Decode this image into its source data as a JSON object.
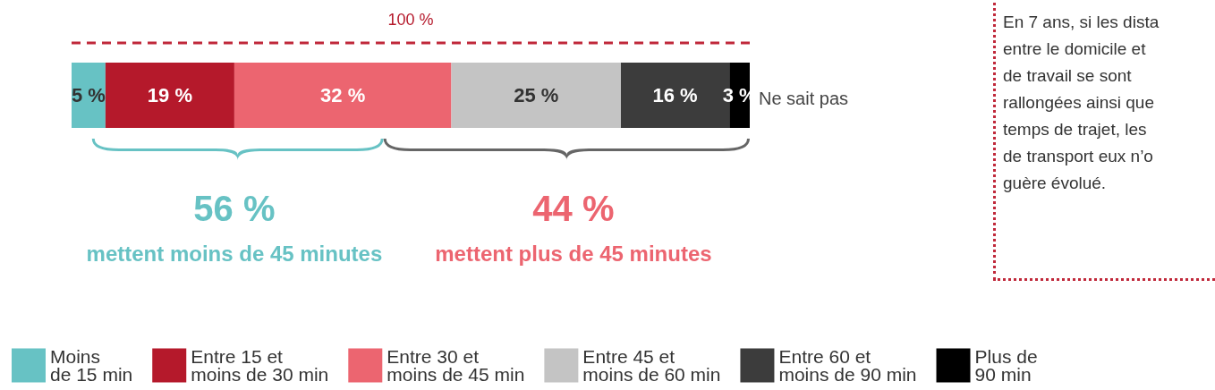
{
  "chart_data": {
    "type": "bar",
    "orientation": "horizontal",
    "stacked": true,
    "categories": [
      null
    ],
    "xlim": [
      0,
      100
    ],
    "legend": "bottom",
    "series": [
      {
        "name": "Moins\nde 15 min",
        "color": "#67c2c4",
        "values": [
          5
        ],
        "value_labels": [
          "5 %"
        ]
      },
      {
        "name": "Entre 15 et\nmoins de 30 min",
        "color": "#b5192b",
        "values": [
          19
        ],
        "value_labels": [
          "19 %"
        ]
      },
      {
        "name": "Entre 30 et\nmoins de 45 min",
        "color": "#ec6570",
        "values": [
          32
        ],
        "value_labels": [
          "32 %"
        ]
      },
      {
        "name": "Entre 45 et\nmoins de 60 min",
        "color": "#c4c4c4",
        "values": [
          25
        ],
        "value_labels": [
          "25 %"
        ]
      },
      {
        "name": "Entre 60 et\nmoins de 90 min",
        "color": "#3c3c3c",
        "values": [
          16
        ],
        "value_labels": [
          "16 %"
        ]
      },
      {
        "name": "Plus de\n90 min",
        "color": "#000000",
        "values": [
          3
        ],
        "value_labels": [
          "3 %"
        ]
      }
    ],
    "annotations": [
      "100 %",
      "Ne sait pas",
      "56 %",
      "mettent moins de 45 minutes",
      "44 %",
      "mettent plus de 45 minutes",
      "En 7 ans, si les dista\nentre le domicile et\nde travail se sont\nrallongées ainsi que\ntemps de trajet, les\nde transport eux n’o\nguère évolué."
    ]
  }
}
